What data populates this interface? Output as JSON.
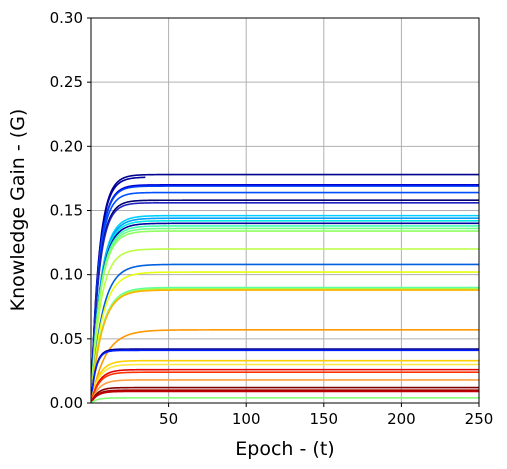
{
  "chart_data": {
    "type": "line",
    "title": "",
    "xlabel": "Epoch - (t)",
    "ylabel": "Knowledge Gain - (G)",
    "xlim": [
      0,
      250
    ],
    "ylim": [
      0,
      0.3
    ],
    "xticks": [
      50,
      100,
      150,
      200,
      250
    ],
    "xtick_labels": [
      "50",
      "100",
      "150",
      "200",
      "250"
    ],
    "yticks": [
      0.0,
      0.05,
      0.1,
      0.15,
      0.2,
      0.25,
      0.3
    ],
    "ytick_labels": [
      "0.00",
      "0.05",
      "0.10",
      "0.15",
      "0.20",
      "0.25",
      "0.30"
    ],
    "grid": true,
    "legend": "none",
    "series": [
      {
        "plateau": 0.178,
        "tau": 5,
        "start_x": 0,
        "end_x": 250,
        "color": "#00008f"
      },
      {
        "plateau": 0.176,
        "tau": 5,
        "start_x": 0,
        "end_x": 35,
        "color": "#00009f"
      },
      {
        "plateau": 0.17,
        "tau": 5,
        "start_x": 0,
        "end_x": 250,
        "color": "#0000d0"
      },
      {
        "plateau": 0.169,
        "tau": 5,
        "start_x": 0,
        "end_x": 250,
        "color": "#003fff"
      },
      {
        "plateau": 0.164,
        "tau": 5,
        "start_x": 0,
        "end_x": 250,
        "color": "#0050ff"
      },
      {
        "plateau": 0.158,
        "tau": 5,
        "start_x": 0,
        "end_x": 250,
        "color": "#00006f"
      },
      {
        "plateau": 0.156,
        "tau": 5,
        "start_x": 0,
        "end_x": 250,
        "color": "#2020c0"
      },
      {
        "plateau": 0.146,
        "tau": 6,
        "start_x": 0,
        "end_x": 250,
        "color": "#00d0ff"
      },
      {
        "plateau": 0.144,
        "tau": 6,
        "start_x": 0,
        "end_x": 250,
        "color": "#00a0ff"
      },
      {
        "plateau": 0.142,
        "tau": 6,
        "start_x": 0,
        "end_x": 250,
        "color": "#00e8e8"
      },
      {
        "plateau": 0.14,
        "tau": 6,
        "start_x": 0,
        "end_x": 250,
        "color": "#0000a0"
      },
      {
        "plateau": 0.138,
        "tau": 6,
        "start_x": 0,
        "end_x": 250,
        "color": "#40ffb0"
      },
      {
        "plateau": 0.136,
        "tau": 6,
        "start_x": 0,
        "end_x": 250,
        "color": "#70ff88"
      },
      {
        "plateau": 0.134,
        "tau": 6,
        "start_x": 0,
        "end_x": 250,
        "color": "#90ff60"
      },
      {
        "plateau": 0.12,
        "tau": 6,
        "start_x": 0,
        "end_x": 250,
        "color": "#b8ff40"
      },
      {
        "plateau": 0.108,
        "tau": 7,
        "start_x": 0,
        "end_x": 250,
        "color": "#0060e0"
      },
      {
        "plateau": 0.102,
        "tau": 7,
        "start_x": 0,
        "end_x": 250,
        "color": "#e8ff10"
      },
      {
        "plateau": 0.09,
        "tau": 7,
        "start_x": 0,
        "end_x": 250,
        "color": "#60ffa0"
      },
      {
        "plateau": 0.089,
        "tau": 7,
        "start_x": 0,
        "end_x": 250,
        "color": "#a0ff50"
      },
      {
        "plateau": 0.088,
        "tau": 7,
        "start_x": 0,
        "end_x": 250,
        "color": "#ffb000"
      },
      {
        "plateau": 0.057,
        "tau": 9,
        "start_x": 0,
        "end_x": 250,
        "color": "#ff9800"
      },
      {
        "plateau": 0.042,
        "tau": 3,
        "start_x": 0,
        "end_x": 250,
        "color": "#00008f"
      },
      {
        "plateau": 0.041,
        "tau": 3,
        "start_x": 0,
        "end_x": 250,
        "color": "#0020ff"
      },
      {
        "plateau": 0.033,
        "tau": 5,
        "start_x": 0,
        "end_x": 250,
        "color": "#ffd000"
      },
      {
        "plateau": 0.03,
        "tau": 5,
        "start_x": 0,
        "end_x": 250,
        "color": "#ffe840"
      },
      {
        "plateau": 0.026,
        "tau": 5,
        "start_x": 0,
        "end_x": 250,
        "color": "#e00000"
      },
      {
        "plateau": 0.024,
        "tau": 5,
        "start_x": 0,
        "end_x": 250,
        "color": "#ff3000"
      },
      {
        "plateau": 0.018,
        "tau": 5,
        "start_x": 0,
        "end_x": 250,
        "color": "#ffa040"
      },
      {
        "plateau": 0.012,
        "tau": 4,
        "start_x": 0,
        "end_x": 250,
        "color": "#800000"
      },
      {
        "plateau": 0.01,
        "tau": 4,
        "start_x": 0,
        "end_x": 250,
        "color": "#a00000"
      },
      {
        "plateau": 0.009,
        "tau": 4,
        "start_x": 0,
        "end_x": 250,
        "color": "#c00000"
      },
      {
        "plateau": 0.004,
        "tau": 4,
        "start_x": 0,
        "end_x": 250,
        "color": "#80ff70"
      }
    ]
  }
}
